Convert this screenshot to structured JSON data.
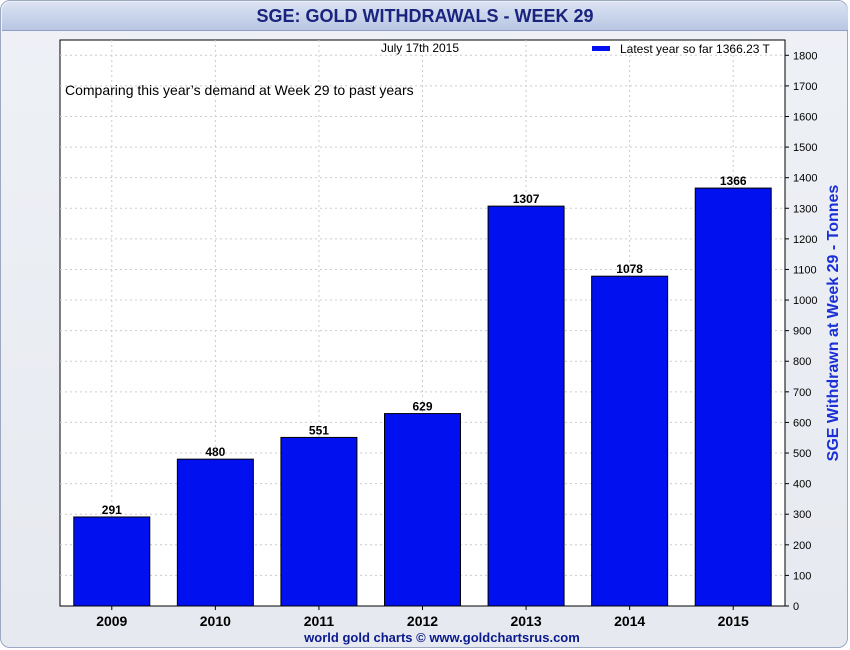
{
  "title": "SGE: GOLD WITHDRAWALS - WEEK 29",
  "date_label": "July 17th 2015",
  "note": "Comparing this year’s demand at Week 29 to past years",
  "legend_label": "Latest year  so far 1366.23 T",
  "credit": "world gold charts © www.goldchartsrus.com",
  "colors": {
    "bar": "#0010ee",
    "accent": "#1a2fd6",
    "title": "#1a237e",
    "grid": "#cccccc"
  },
  "chart_data": {
    "type": "bar",
    "categories": [
      "2009",
      "2010",
      "2011",
      "2012",
      "2013",
      "2014",
      "2015"
    ],
    "values": [
      291,
      480,
      551,
      629,
      1307,
      1078,
      1366
    ],
    "value_labels": [
      "291",
      "480",
      "551",
      "629",
      "1307",
      "1078",
      "1366"
    ],
    "title": "SGE: GOLD WITHDRAWALS - WEEK 29",
    "xlabel": "",
    "ylabel": "SGE Withdrawn at Week 29 - Tonnes",
    "ylim": [
      0,
      1850
    ],
    "y_ticks": [
      0,
      100,
      200,
      300,
      400,
      500,
      600,
      700,
      800,
      900,
      1000,
      1100,
      1200,
      1300,
      1400,
      1500,
      1600,
      1700,
      1800
    ],
    "y_axis_side": "right",
    "grid": true,
    "legend_position": "top-right"
  }
}
